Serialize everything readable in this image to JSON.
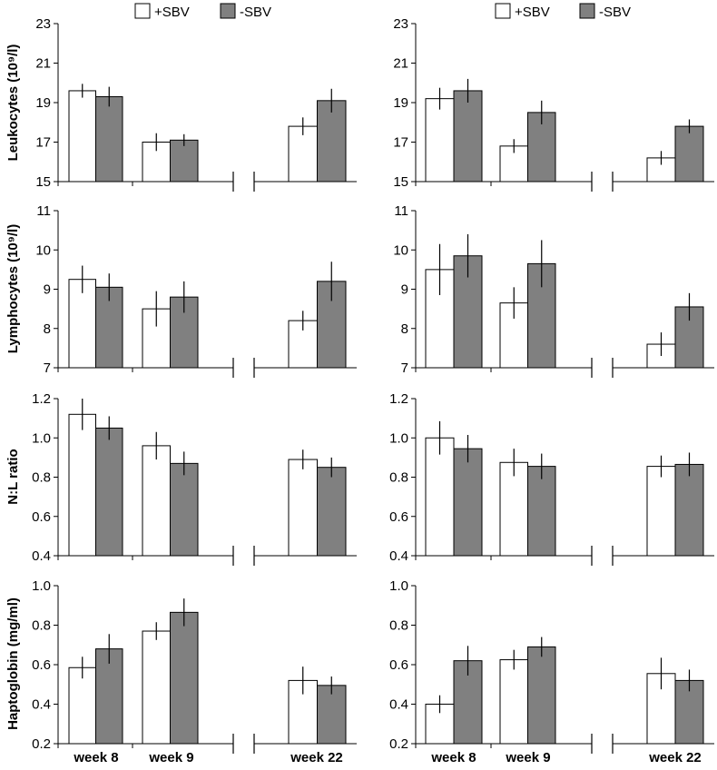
{
  "chart_data": {
    "type": "bar",
    "legend": {
      "position": "top",
      "entries": [
        {
          "name": "+SBV",
          "color": "#ffffff"
        },
        {
          "name": "-SBV",
          "color": "#808080"
        }
      ]
    },
    "categories": [
      "week 8",
      "week 9",
      "week 22"
    ],
    "axis_break_between": [
      "week 9",
      "week 22"
    ],
    "grid": false,
    "panels": [
      {
        "id": "L1",
        "column": 0,
        "row": 0,
        "ylabel": "Leukocytes (10⁹/l)",
        "ylim": [
          15,
          23
        ],
        "yticks": [
          15,
          17,
          19,
          21,
          23
        ],
        "tick_labels": [
          "15",
          "17",
          "19",
          "21",
          "23"
        ],
        "series": [
          {
            "name": "+SBV",
            "values": [
              19.6,
              17.0,
              17.8
            ],
            "errors": [
              0.35,
              0.45,
              0.45
            ]
          },
          {
            "name": "-SBV",
            "values": [
              19.3,
              17.1,
              19.1
            ],
            "errors": [
              0.5,
              0.3,
              0.6
            ]
          }
        ]
      },
      {
        "id": "R1",
        "column": 1,
        "row": 0,
        "ylabel": "",
        "ylim": [
          15,
          23
        ],
        "yticks": [
          15,
          17,
          19,
          21,
          23
        ],
        "tick_labels": [
          "15",
          "17",
          "19",
          "21",
          "23"
        ],
        "series": [
          {
            "name": "+SBV",
            "values": [
              19.2,
              16.8,
              16.2
            ],
            "errors": [
              0.55,
              0.35,
              0.35
            ]
          },
          {
            "name": "-SBV",
            "values": [
              19.6,
              18.5,
              17.8
            ],
            "errors": [
              0.6,
              0.6,
              0.35
            ]
          }
        ]
      },
      {
        "id": "L2",
        "column": 0,
        "row": 1,
        "ylabel": "Lymphocytes (10⁹/l)",
        "ylim": [
          7,
          11
        ],
        "yticks": [
          7,
          8,
          9,
          10,
          11
        ],
        "tick_labels": [
          "7",
          "8",
          "9",
          "10",
          "11"
        ],
        "series": [
          {
            "name": "+SBV",
            "values": [
              9.25,
              8.5,
              8.2
            ],
            "errors": [
              0.35,
              0.45,
              0.25
            ]
          },
          {
            "name": "-SBV",
            "values": [
              9.05,
              8.8,
              9.2
            ],
            "errors": [
              0.35,
              0.4,
              0.5
            ]
          }
        ]
      },
      {
        "id": "R2",
        "column": 1,
        "row": 1,
        "ylabel": "",
        "ylim": [
          7,
          11
        ],
        "yticks": [
          7,
          8,
          9,
          10,
          11
        ],
        "tick_labels": [
          "7",
          "8",
          "9",
          "10",
          "11"
        ],
        "series": [
          {
            "name": "+SBV",
            "values": [
              9.5,
              8.65,
              7.6
            ],
            "errors": [
              0.65,
              0.4,
              0.3
            ]
          },
          {
            "name": "-SBV",
            "values": [
              9.85,
              9.65,
              8.55
            ],
            "errors": [
              0.55,
              0.6,
              0.35
            ]
          }
        ]
      },
      {
        "id": "L3",
        "column": 0,
        "row": 2,
        "ylabel": "N:L ratio",
        "ylim": [
          0.4,
          1.2
        ],
        "yticks": [
          0.4,
          0.6,
          0.8,
          1.0,
          1.2
        ],
        "tick_labels": [
          "0.4",
          "0.6",
          "0.8",
          "1.0",
          "1.2"
        ],
        "series": [
          {
            "name": "+SBV",
            "values": [
              1.12,
              0.96,
              0.89
            ],
            "errors": [
              0.08,
              0.07,
              0.05
            ]
          },
          {
            "name": "-SBV",
            "values": [
              1.05,
              0.87,
              0.85
            ],
            "errors": [
              0.06,
              0.06,
              0.05
            ]
          }
        ]
      },
      {
        "id": "R3",
        "column": 1,
        "row": 2,
        "ylabel": "",
        "ylim": [
          0.4,
          1.2
        ],
        "yticks": [
          0.4,
          0.6,
          0.8,
          1.0,
          1.2
        ],
        "tick_labels": [
          "0.4",
          "0.6",
          "0.8",
          "1.0",
          "1.2"
        ],
        "series": [
          {
            "name": "+SBV",
            "values": [
              1.0,
              0.875,
              0.855
            ],
            "errors": [
              0.085,
              0.07,
              0.055
            ]
          },
          {
            "name": "-SBV",
            "values": [
              0.945,
              0.855,
              0.865
            ],
            "errors": [
              0.07,
              0.065,
              0.06
            ]
          }
        ]
      },
      {
        "id": "L4",
        "column": 0,
        "row": 3,
        "ylabel": "Haptoglobin (mg/ml)",
        "ylim": [
          0.2,
          1.0
        ],
        "yticks": [
          0.2,
          0.4,
          0.6,
          0.8,
          1.0
        ],
        "tick_labels": [
          "0.2",
          "0.4",
          "0.6",
          "0.8",
          "1.0"
        ],
        "series": [
          {
            "name": "+SBV",
            "values": [
              0.585,
              0.77,
              0.52
            ],
            "errors": [
              0.055,
              0.045,
              0.07
            ]
          },
          {
            "name": "-SBV",
            "values": [
              0.68,
              0.865,
              0.495
            ],
            "errors": [
              0.075,
              0.07,
              0.045
            ]
          }
        ]
      },
      {
        "id": "R4",
        "column": 1,
        "row": 3,
        "ylabel": "",
        "ylim": [
          0.2,
          1.0
        ],
        "yticks": [
          0.2,
          0.4,
          0.6,
          0.8,
          1.0
        ],
        "tick_labels": [
          "0.2",
          "0.4",
          "0.6",
          "0.8",
          "1.0"
        ],
        "series": [
          {
            "name": "+SBV",
            "values": [
              0.4,
              0.625,
              0.555
            ],
            "errors": [
              0.045,
              0.05,
              0.08
            ]
          },
          {
            "name": "-SBV",
            "values": [
              0.62,
              0.69,
              0.52
            ],
            "errors": [
              0.075,
              0.05,
              0.055
            ]
          }
        ]
      }
    ]
  }
}
